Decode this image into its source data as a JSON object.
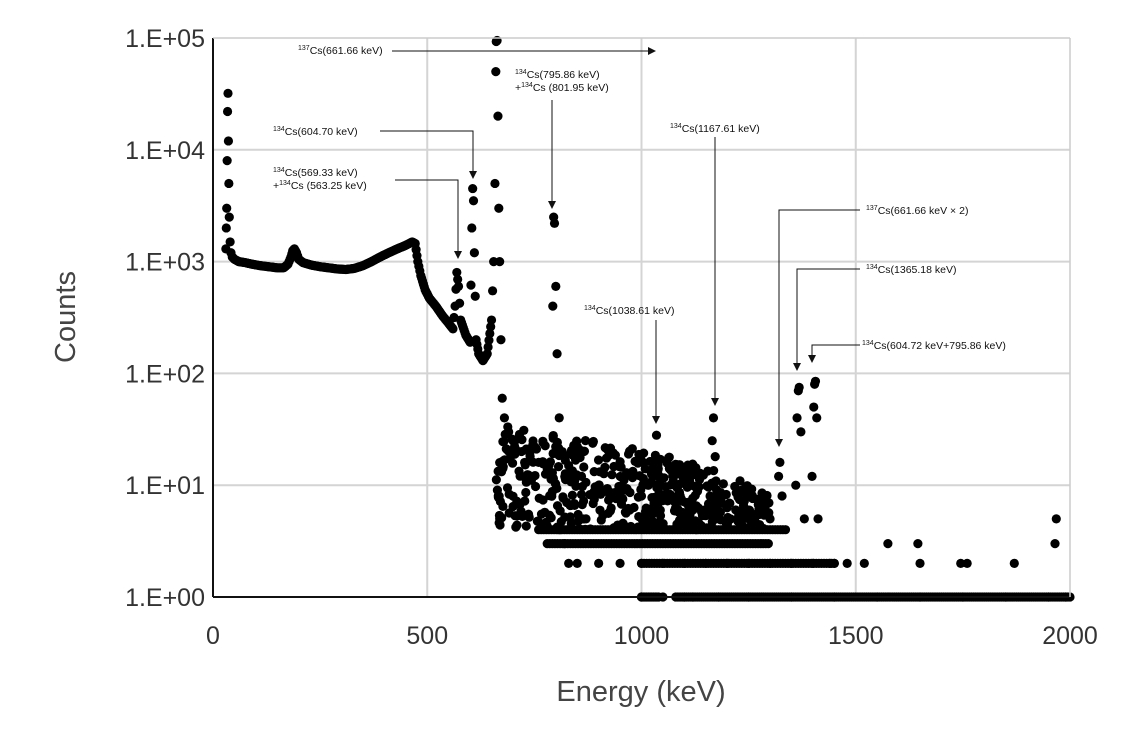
{
  "chart_data": {
    "type": "scatter",
    "title": "",
    "xlabel": "Energy (keV)",
    "ylabel": "Counts",
    "x_range": [
      0,
      2000
    ],
    "y_range": [
      1,
      100000
    ],
    "y_scale": "log",
    "grid": true,
    "legend": "none",
    "marker_color": "#000000",
    "x_ticks": [
      {
        "value": 0,
        "label": "0"
      },
      {
        "value": 500,
        "label": "500"
      },
      {
        "value": 1000,
        "label": "1000"
      },
      {
        "value": 1500,
        "label": "1500"
      },
      {
        "value": 2000,
        "label": "2000"
      }
    ],
    "y_ticks": [
      {
        "value": 1,
        "label": "1.E+00"
      },
      {
        "value": 10,
        "label": "1.E+01"
      },
      {
        "value": 100,
        "label": "1.E+02"
      },
      {
        "value": 1000,
        "label": "1.E+03"
      },
      {
        "value": 10000,
        "label": "1.E+04"
      },
      {
        "value": 100000,
        "label": "1.E+05"
      }
    ],
    "series": [
      {
        "points": [
          [
            30,
            1300
          ],
          [
            31,
            2000
          ],
          [
            32,
            3000
          ],
          [
            33,
            8000
          ],
          [
            34,
            22000
          ],
          [
            35,
            32000
          ],
          [
            36,
            12000
          ],
          [
            37,
            5000
          ],
          [
            38,
            2500
          ],
          [
            40,
            1500
          ],
          [
            42,
            1200
          ],
          [
            45,
            1100
          ],
          [
            50,
            1050
          ],
          [
            60,
            1000
          ],
          [
            75,
            980
          ],
          [
            90,
            950
          ],
          [
            110,
            920
          ],
          [
            130,
            900
          ],
          [
            150,
            880
          ],
          [
            165,
            880
          ],
          [
            175,
            950
          ],
          [
            182,
            1100
          ],
          [
            186,
            1250
          ],
          [
            190,
            1300
          ],
          [
            195,
            1200
          ],
          [
            200,
            1050
          ],
          [
            210,
            980
          ],
          [
            230,
            930
          ],
          [
            250,
            900
          ],
          [
            270,
            880
          ],
          [
            290,
            860
          ],
          [
            310,
            850
          ],
          [
            330,
            870
          ],
          [
            350,
            920
          ],
          [
            370,
            1000
          ],
          [
            390,
            1100
          ],
          [
            410,
            1200
          ],
          [
            430,
            1300
          ],
          [
            450,
            1400
          ],
          [
            465,
            1500
          ],
          [
            472,
            1450
          ],
          [
            478,
            1000
          ],
          [
            485,
            750
          ],
          [
            495,
            560
          ],
          [
            505,
            470
          ],
          [
            520,
            400
          ],
          [
            535,
            330
          ],
          [
            550,
            280
          ],
          [
            560,
            250
          ],
          [
            565,
            400
          ],
          [
            569,
            800
          ],
          [
            573,
            600
          ],
          [
            578,
            300
          ],
          [
            590,
            220
          ],
          [
            600,
            190
          ],
          [
            604,
            2000
          ],
          [
            606,
            4500
          ],
          [
            608,
            3500
          ],
          [
            610,
            1200
          ],
          [
            614,
            200
          ],
          [
            620,
            150
          ],
          [
            630,
            130
          ],
          [
            640,
            150
          ],
          [
            650,
            300
          ],
          [
            655,
            1000
          ],
          [
            658,
            5000
          ],
          [
            660,
            50000
          ],
          [
            661,
            93000
          ],
          [
            663,
            95000
          ],
          [
            665,
            20000
          ],
          [
            667,
            3000
          ],
          [
            669,
            1000
          ],
          [
            672,
            200
          ],
          [
            675,
            60
          ],
          [
            680,
            40
          ],
          [
            690,
            30
          ],
          [
            700,
            25
          ],
          [
            720,
            20
          ],
          [
            740,
            18
          ],
          [
            760,
            16
          ],
          [
            780,
            14
          ],
          [
            793,
            400
          ],
          [
            795,
            2500
          ],
          [
            797,
            2200
          ],
          [
            800,
            600
          ],
          [
            803,
            150
          ],
          [
            808,
            40
          ],
          [
            815,
            20
          ],
          [
            830,
            15
          ],
          [
            860,
            12
          ],
          [
            900,
            10
          ],
          [
            950,
            9
          ],
          [
            1000,
            8
          ],
          [
            1030,
            15
          ],
          [
            1035,
            28
          ],
          [
            1040,
            12
          ],
          [
            1080,
            7
          ],
          [
            1120,
            6
          ],
          [
            1160,
            8
          ],
          [
            1165,
            25
          ],
          [
            1168,
            40
          ],
          [
            1172,
            18
          ],
          [
            1180,
            7
          ],
          [
            1220,
            6
          ],
          [
            1260,
            5
          ],
          [
            1300,
            5
          ],
          [
            1320,
            12
          ],
          [
            1323,
            16
          ],
          [
            1328,
            8
          ],
          [
            1360,
            10
          ],
          [
            1363,
            40
          ],
          [
            1366,
            70
          ],
          [
            1368,
            75
          ],
          [
            1372,
            30
          ],
          [
            1380,
            5
          ],
          [
            1398,
            12
          ],
          [
            1402,
            50
          ],
          [
            1404,
            80
          ],
          [
            1406,
            85
          ],
          [
            1409,
            40
          ],
          [
            1412,
            5
          ],
          [
            1450,
            2
          ],
          [
            1520,
            2
          ],
          [
            1575,
            3
          ],
          [
            1645,
            3
          ],
          [
            1650,
            2
          ],
          [
            1745,
            2
          ],
          [
            1760,
            2
          ],
          [
            1870,
            2
          ],
          [
            1965,
            3
          ],
          [
            1968,
            5
          ],
          [
            810,
            4
          ],
          [
            820,
            3
          ],
          [
            830,
            2
          ],
          [
            850,
            2
          ],
          [
            900,
            2
          ],
          [
            950,
            2
          ],
          [
            1000,
            2
          ],
          [
            1050,
            2
          ],
          [
            1100,
            2
          ],
          [
            1150,
            2
          ],
          [
            1200,
            2
          ],
          [
            1250,
            2
          ],
          [
            1300,
            2
          ],
          [
            1350,
            2
          ],
          [
            1400,
            2
          ],
          [
            1440,
            2
          ],
          [
            1480,
            2
          ],
          [
            1000,
            1
          ],
          [
            1050,
            1
          ],
          [
            1100,
            1
          ],
          [
            1120,
            1
          ],
          [
            1180,
            1
          ],
          [
            1250,
            1
          ],
          [
            1350,
            1
          ],
          [
            1450,
            1
          ],
          [
            1550,
            1
          ],
          [
            1650,
            1
          ],
          [
            1750,
            1
          ],
          [
            1850,
            1
          ],
          [
            1950,
            1
          ],
          [
            1990,
            1
          ]
        ],
        "baseline_runs": [
          {
            "y": 4,
            "x_from": 760,
            "x_to": 1340,
            "step": 6
          },
          {
            "y": 3,
            "x_from": 780,
            "x_to": 1300,
            "step": 6
          },
          {
            "y": 2,
            "x_from": 1000,
            "x_to": 1450,
            "step": 6
          },
          {
            "y": 1,
            "x_from": 1080,
            "x_to": 2000,
            "step": 5
          },
          {
            "y": 1,
            "x_from": 1000,
            "x_to": 1040,
            "step": 4
          }
        ],
        "noise_band": {
          "x_from": 660,
          "x_to": 1300,
          "y_low": 4,
          "y_high": 35,
          "decay_to": 8,
          "count": 520
        }
      }
    ],
    "annotations": [
      {
        "sup": "137",
        "text": "Cs(661.66 keV)",
        "x_label": 310,
        "y_label": 52000,
        "arrow_to": [
          661.66,
          52000
        ],
        "kind": "h"
      },
      {
        "sup": "134",
        "line1": "Cs(795.86 keV)",
        "line2_prefix": "+",
        "line2_sup": "134",
        "line2": "Cs (801.95 keV)",
        "x_label": 797,
        "y_label": 28000,
        "arrow_to": [
          797,
          2800
        ],
        "kind": "v"
      },
      {
        "sup": "134",
        "text": "Cs(604.70 keV)",
        "x_label": 605,
        "y_label": 12000,
        "arrow_to": [
          605,
          4800
        ],
        "kind": "bent"
      },
      {
        "sup": "134",
        "line1": "Cs(569.33 keV)",
        "line2_prefix": "+",
        "line2_sup": "134",
        "line2": "Cs (563.25 keV)",
        "x_label": 575,
        "y_label": 5500,
        "arrow_to": [
          575,
          880
        ],
        "kind": "bent"
      },
      {
        "sup": "134",
        "text": "Cs(1167.61 keV)",
        "x_label": 1170,
        "y_label": 14000,
        "arrow_to": [
          1170,
          45
        ],
        "kind": "v"
      },
      {
        "sup": "137",
        "text": "Cs(661.66 keV × 2)",
        "x_label": 1323,
        "y_label": 2000,
        "arrow_to": [
          1323,
          18
        ],
        "kind": "bent"
      },
      {
        "sup": "134",
        "text": "Cs(1365.18 keV)",
        "x_label": 1365,
        "y_label": 900,
        "arrow_to": [
          1365,
          80
        ],
        "kind": "bent"
      },
      {
        "sup": "134",
        "text": "Cs(1038.61 keV)",
        "x_label": 1038,
        "y_label": 300,
        "arrow_to": [
          1038,
          30
        ],
        "kind": "v"
      },
      {
        "sup": "134",
        "text": "Cs(604.72 keV+795.86 keV)",
        "x_label": 1404,
        "y_label": 110,
        "arrow_to": [
          1404,
          90
        ],
        "kind": "bent"
      }
    ]
  }
}
